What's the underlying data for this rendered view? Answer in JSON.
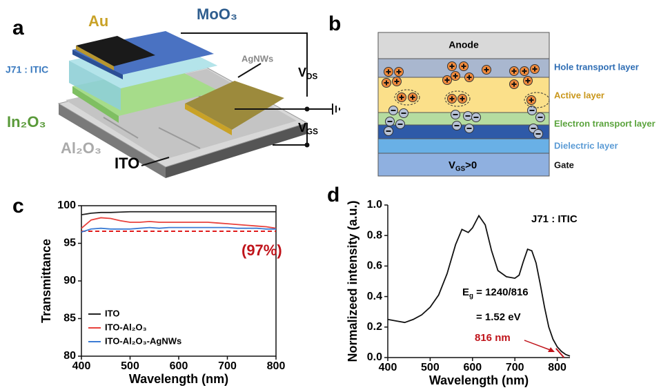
{
  "panels": [
    "a",
    "b",
    "c",
    "d"
  ],
  "diagram_a": {
    "au": "Au",
    "moo3": "MoO₃",
    "active": "J71 : ITIC",
    "agnws": "AgNWs",
    "vds": {
      "main": "V",
      "sub": "DS"
    },
    "vgs": {
      "main": "V",
      "sub": "GS"
    },
    "in2o3": "In₂O₃",
    "al2o3": "Al₂O₃",
    "ito": "ITO"
  },
  "diagram_b": {
    "anode": "Anode",
    "gate_bias": {
      "main": "V",
      "sub": "GS",
      "rest": ">0"
    },
    "layers": [
      "Hole transport layer",
      "Active layer",
      "Electron transport layer",
      "Dielectric layer",
      "Gate"
    ]
  },
  "chart_data": [
    {
      "type": "line",
      "xlabel": "Wavelength (nm)",
      "ylabel": "Transmittance",
      "x": [
        400,
        420,
        440,
        460,
        480,
        500,
        520,
        540,
        560,
        580,
        600,
        620,
        640,
        660,
        680,
        700,
        720,
        740,
        760,
        780,
        800
      ],
      "series": [
        {
          "name": "ITO",
          "color": "#222222",
          "values": [
            98.8,
            99.0,
            99.1,
            99.1,
            99.15,
            99.2,
            99.2,
            99.2,
            99.2,
            99.2,
            99.2,
            99.2,
            99.2,
            99.2,
            99.2,
            99.2,
            99.2,
            99.2,
            99.2,
            99.2,
            99.2
          ]
        },
        {
          "name": "ITO-Al₂O₃",
          "color": "#e8413c",
          "values": [
            97.0,
            98.1,
            98.4,
            98.3,
            98.0,
            97.8,
            97.8,
            97.9,
            97.8,
            97.8,
            97.8,
            97.8,
            97.8,
            97.8,
            97.7,
            97.6,
            97.5,
            97.4,
            97.3,
            97.2,
            97.0
          ]
        },
        {
          "name": "ITO-Al₂O₃-AgNWs",
          "color": "#3b7bd4",
          "values": [
            96.5,
            96.9,
            97.0,
            96.9,
            96.9,
            96.9,
            97.0,
            97.1,
            97.0,
            97.1,
            97.1,
            97.1,
            97.1,
            97.1,
            97.1,
            97.1,
            97.0,
            97.0,
            97.0,
            96.9,
            96.9
          ]
        }
      ],
      "hline": {
        "value": 96.6,
        "color": "#e01b1b"
      },
      "annotation": "(97%)",
      "annotation_color": "#c0141b",
      "xlim": [
        400,
        800
      ],
      "ylim": [
        80,
        100
      ],
      "xticks": [
        400,
        500,
        600,
        700,
        800
      ],
      "yticks": [
        80,
        85,
        90,
        95,
        100
      ],
      "legend": "lower-left"
    },
    {
      "type": "line",
      "xlabel": "Wavelength (nm)",
      "ylabel": "Normalizeed intensity (a.u.)",
      "x": [
        400,
        420,
        440,
        460,
        480,
        500,
        520,
        540,
        560,
        575,
        590,
        600,
        615,
        630,
        645,
        660,
        680,
        700,
        710,
        720,
        730,
        740,
        750,
        760,
        770,
        780,
        790,
        800,
        810,
        820,
        830
      ],
      "series": [
        {
          "name": "J71 : ITIC",
          "color": "#111111",
          "values": [
            0.25,
            0.24,
            0.23,
            0.25,
            0.28,
            0.33,
            0.41,
            0.55,
            0.74,
            0.84,
            0.82,
            0.85,
            0.93,
            0.87,
            0.7,
            0.57,
            0.53,
            0.52,
            0.54,
            0.63,
            0.71,
            0.7,
            0.62,
            0.48,
            0.33,
            0.2,
            0.12,
            0.07,
            0.04,
            0.02,
            0.01
          ]
        }
      ],
      "tangent": {
        "x": [
          797,
          816
        ],
        "y": [
          0.06,
          0
        ],
        "color": "#c0141b"
      },
      "eg_label": {
        "main": "E",
        "sub": "g",
        "rest": " = 1240/816"
      },
      "eg_value": "= 1.52 eV",
      "edge_label": "816 nm",
      "xlim": [
        400,
        830
      ],
      "ylim": [
        0,
        1.0
      ],
      "xticks": [
        400,
        500,
        600,
        700,
        800
      ],
      "yticks": [
        {
          "value": 0,
          "label": "0.0"
        },
        0.2,
        0.4,
        0.6,
        0.8,
        {
          "value": 1,
          "label": "1.0"
        }
      ]
    }
  ]
}
